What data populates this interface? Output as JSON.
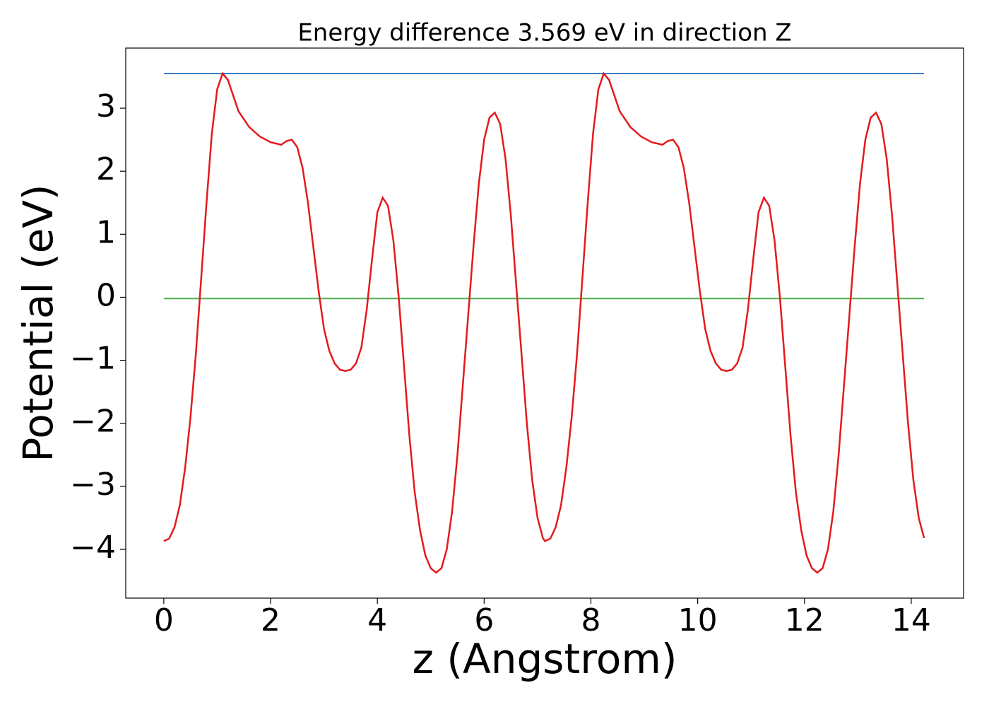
{
  "chart_data": {
    "type": "line",
    "title": "Energy difference 3.569 eV in direction Z",
    "xlabel": "z (Angstrom)",
    "ylabel": "Potential (eV)",
    "xlim": [
      -0.713,
      14.98
    ],
    "ylim": [
      -4.774,
      3.954
    ],
    "xticks": [
      0,
      2,
      4,
      6,
      8,
      10,
      12,
      14
    ],
    "yticks": [
      {
        "value": -4,
        "label": "−4"
      },
      {
        "value": -3,
        "label": "−3"
      },
      {
        "value": -2,
        "label": "−2"
      },
      {
        "value": -1,
        "label": "−1"
      },
      0,
      1,
      2,
      3
    ],
    "series": [
      {
        "color": "#e41a1c",
        "x": [
          0,
          0.1,
          0.2,
          0.3,
          0.4,
          0.5,
          0.6,
          0.7,
          0.8,
          0.9,
          1.0,
          1.1,
          1.2,
          1.3,
          1.4,
          1.6,
          1.8,
          2.0,
          2.2,
          2.3,
          2.4,
          2.5,
          2.6,
          2.7,
          2.8,
          2.9,
          3.0,
          3.1,
          3.2,
          3.3,
          3.4,
          3.5,
          3.6,
          3.7,
          3.8,
          3.9,
          4.0,
          4.1,
          4.2,
          4.3,
          4.4,
          4.5,
          4.6,
          4.7,
          4.8,
          4.9,
          5.0,
          5.1,
          5.2,
          5.3,
          5.4,
          5.5,
          5.6,
          5.7,
          5.8,
          5.9,
          6.0,
          6.1,
          6.2,
          6.3,
          6.4,
          6.5,
          6.6,
          6.7,
          6.8,
          6.9,
          7.0,
          7.1,
          7.14,
          7.24,
          7.34,
          7.44,
          7.54,
          7.64,
          7.74,
          7.84,
          7.94,
          8.04,
          8.14,
          8.24,
          8.34,
          8.44,
          8.54,
          8.74,
          8.94,
          9.14,
          9.34,
          9.44,
          9.54,
          9.64,
          9.74,
          9.84,
          9.94,
          10.04,
          10.14,
          10.24,
          10.34,
          10.44,
          10.54,
          10.64,
          10.74,
          10.84,
          10.94,
          11.04,
          11.14,
          11.24,
          11.34,
          11.44,
          11.54,
          11.64,
          11.74,
          11.84,
          11.94,
          12.04,
          12.14,
          12.24,
          12.34,
          12.44,
          12.54,
          12.64,
          12.74,
          12.84,
          12.94,
          13.04,
          13.14,
          13.24,
          13.34,
          13.44,
          13.54,
          13.64,
          13.74,
          13.84,
          13.94,
          14.04,
          14.14,
          14.24
        ],
        "values": [
          -3.87,
          -3.83,
          -3.65,
          -3.3,
          -2.7,
          -1.9,
          -0.9,
          0.3,
          1.5,
          2.6,
          3.3,
          3.55,
          3.45,
          3.2,
          2.95,
          2.7,
          2.55,
          2.46,
          2.42,
          2.48,
          2.5,
          2.38,
          2.05,
          1.5,
          0.8,
          0.1,
          -0.5,
          -0.85,
          -1.05,
          -1.15,
          -1.17,
          -1.15,
          -1.05,
          -0.8,
          -0.2,
          0.6,
          1.35,
          1.58,
          1.45,
          0.9,
          0.0,
          -1.1,
          -2.2,
          -3.1,
          -3.7,
          -4.1,
          -4.3,
          -4.37,
          -4.3,
          -4.0,
          -3.4,
          -2.5,
          -1.4,
          -0.3,
          0.8,
          1.8,
          2.5,
          2.85,
          2.93,
          2.75,
          2.2,
          1.3,
          0.2,
          -0.9,
          -2.0,
          -2.9,
          -3.5,
          -3.82,
          -3.87,
          -3.83,
          -3.65,
          -3.3,
          -2.7,
          -1.9,
          -0.9,
          0.3,
          1.5,
          2.6,
          3.3,
          3.55,
          3.45,
          3.2,
          2.95,
          2.7,
          2.55,
          2.46,
          2.42,
          2.48,
          2.5,
          2.38,
          2.05,
          1.5,
          0.8,
          0.1,
          -0.5,
          -0.85,
          -1.05,
          -1.15,
          -1.17,
          -1.15,
          -1.05,
          -0.8,
          -0.2,
          0.6,
          1.35,
          1.58,
          1.45,
          0.9,
          0.0,
          -1.1,
          -2.2,
          -3.1,
          -3.7,
          -4.1,
          -4.3,
          -4.37,
          -4.3,
          -4.0,
          -3.4,
          -2.5,
          -1.4,
          -0.3,
          0.8,
          1.8,
          2.5,
          2.85,
          2.93,
          2.75,
          2.2,
          1.3,
          0.2,
          -0.9,
          -2.0,
          -2.9,
          -3.5,
          -3.82
        ]
      },
      {
        "color": "#3a7dc0",
        "x": [
          0,
          14.24
        ],
        "values": [
          3.55,
          3.55
        ]
      },
      {
        "color": "#4daf4a",
        "x": [
          0,
          14.24
        ],
        "values": [
          -0.02,
          -0.02
        ]
      }
    ]
  }
}
